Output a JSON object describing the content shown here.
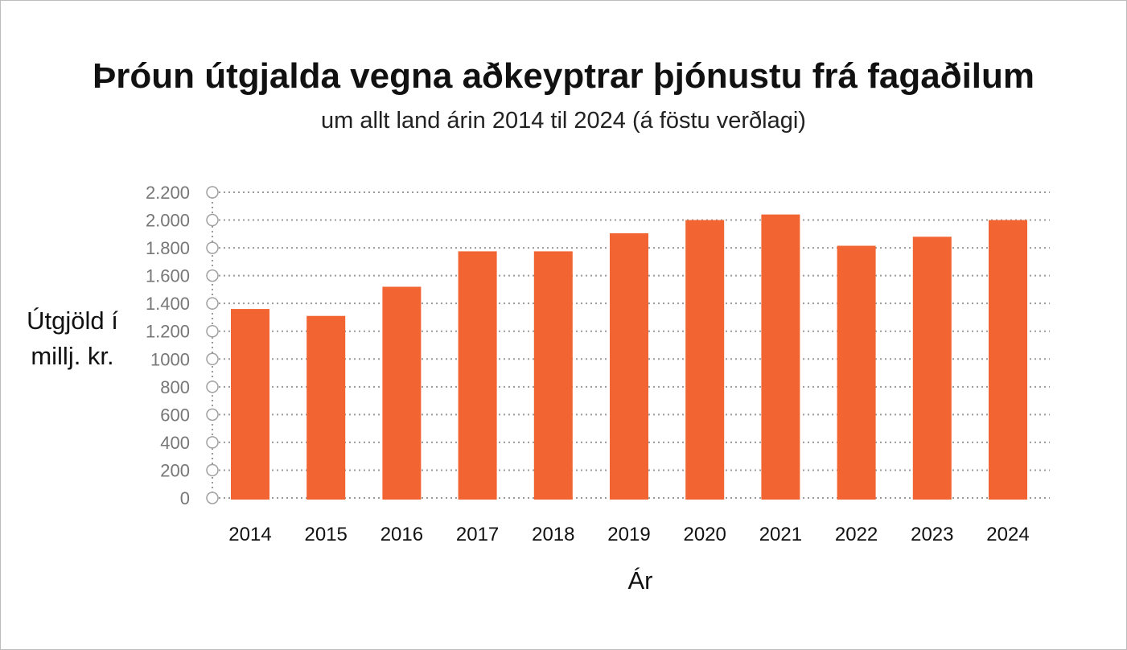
{
  "chart_data": {
    "type": "bar",
    "title": "Þróun útgjalda vegna aðkeyptrar þjónustu frá fagaðilum",
    "subtitle": "um allt land árin 2014 til 2024 (á föstu verðlagi)",
    "ylabel_lines": [
      "Útgjöld í",
      "millj. kr."
    ],
    "xlabel": "Ár",
    "categories": [
      "2014",
      "2015",
      "2016",
      "2017",
      "2018",
      "2019",
      "2020",
      "2021",
      "2022",
      "2023",
      "2024"
    ],
    "values": [
      1360,
      1310,
      1520,
      1775,
      1775,
      1905,
      2000,
      2040,
      1815,
      1880,
      2000
    ],
    "ylim": [
      0,
      2200
    ],
    "yticks": [
      0,
      200,
      400,
      600,
      800,
      1000,
      1200,
      1400,
      1600,
      1800,
      2000,
      2200
    ],
    "ytick_labels": [
      "0",
      "200",
      "400",
      "600",
      "800",
      "1000",
      "1.200",
      "1.400",
      "1.600",
      "1.800",
      "2.000",
      "2.200"
    ],
    "bar_color": "#f26532",
    "grid": true,
    "grid_style": "dotted",
    "legend": "none"
  }
}
